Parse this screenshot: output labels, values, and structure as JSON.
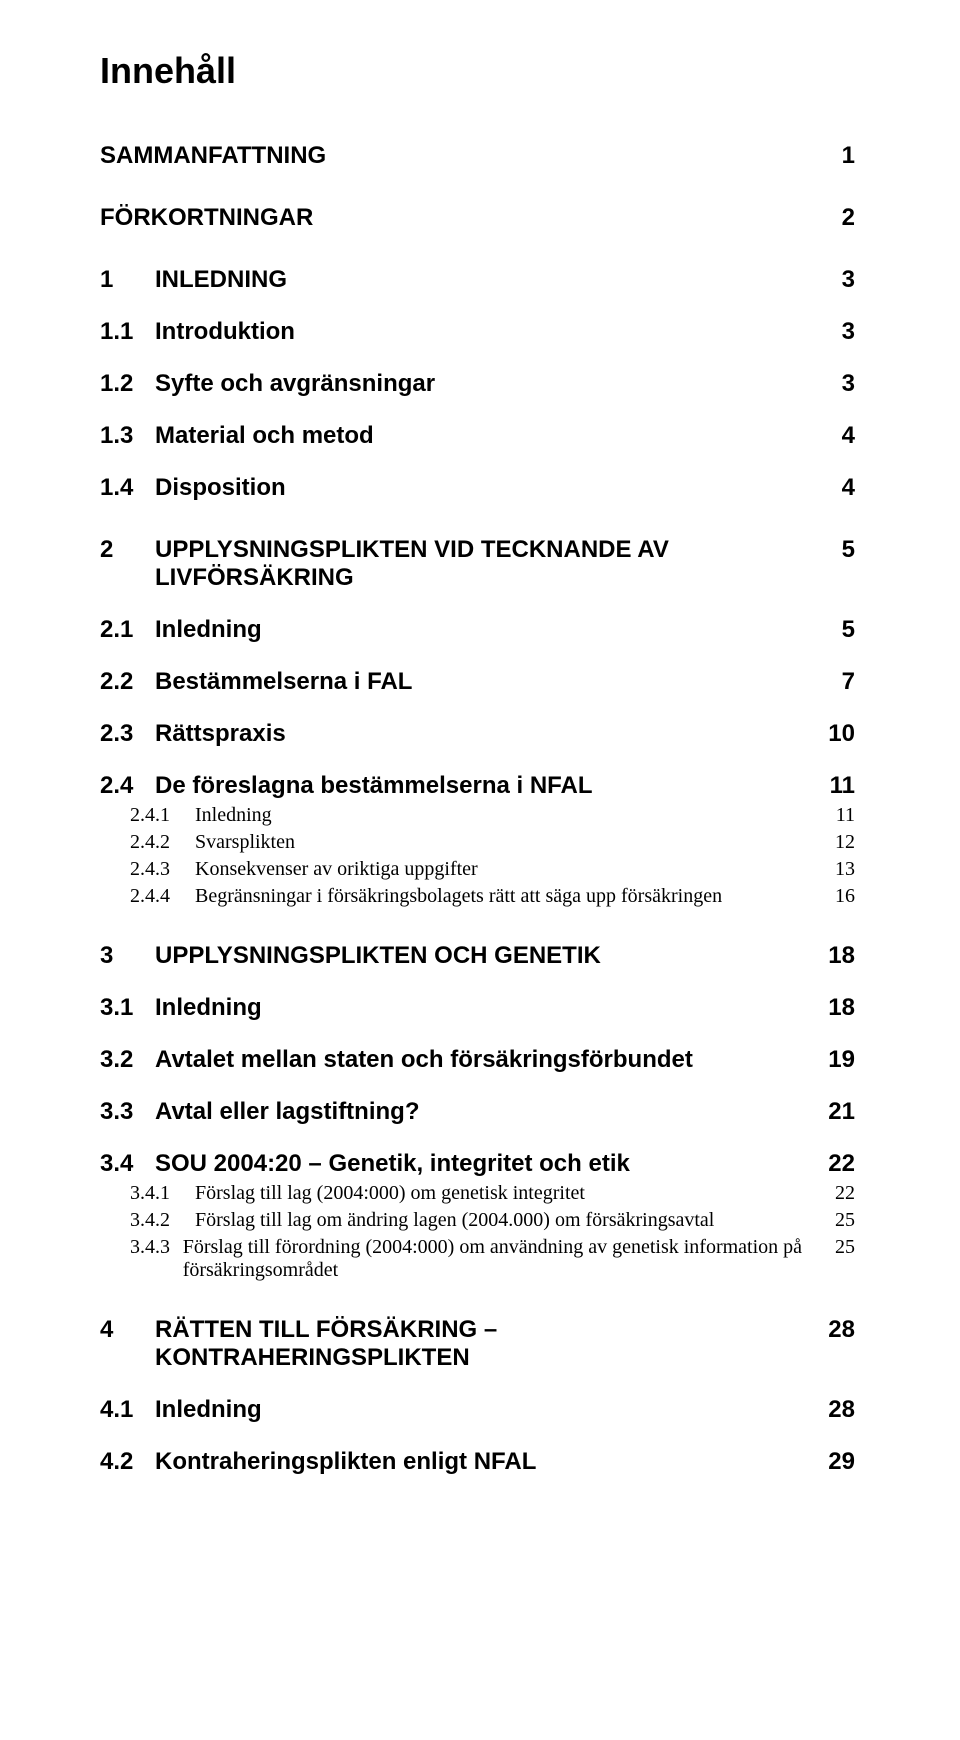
{
  "title": "Innehåll",
  "toc": [
    {
      "level": "h1",
      "num": "",
      "label": "SAMMANFATTNING",
      "page": "1",
      "first": true
    },
    {
      "level": "h1",
      "num": "",
      "label": "FÖRKORTNINGAR",
      "page": "2"
    },
    {
      "level": "h1",
      "num": "1",
      "label": "INLEDNING",
      "page": "3"
    },
    {
      "level": "h2",
      "num": "1.1",
      "label": "Introduktion",
      "page": "3"
    },
    {
      "level": "h2",
      "num": "1.2",
      "label": "Syfte och avgränsningar",
      "page": "3"
    },
    {
      "level": "h2",
      "num": "1.3",
      "label": "Material och metod",
      "page": "4"
    },
    {
      "level": "h2",
      "num": "1.4",
      "label": "Disposition",
      "page": "4"
    },
    {
      "level": "h1",
      "num": "2",
      "label": "UPPLYSNINGSPLIKTEN VID TECKNANDE AV LIVFÖRSÄKRING",
      "page": "5"
    },
    {
      "level": "h2",
      "num": "2.1",
      "label": "Inledning",
      "page": "5"
    },
    {
      "level": "h2",
      "num": "2.2",
      "label": "Bestämmelserna i FAL",
      "page": "7"
    },
    {
      "level": "h2",
      "num": "2.3",
      "label": "Rättspraxis",
      "page": "10"
    },
    {
      "level": "h2",
      "num": "2.4",
      "label": "De föreslagna bestämmelserna i NFAL",
      "page": "11"
    },
    {
      "level": "h3",
      "num": "2.4.1",
      "label": "Inledning",
      "page": "11",
      "indent": true
    },
    {
      "level": "h3",
      "num": "2.4.2",
      "label": "Svarsplikten",
      "page": "12",
      "indent": true
    },
    {
      "level": "h3",
      "num": "2.4.3",
      "label": "Konsekvenser av oriktiga uppgifter",
      "page": "13",
      "indent": true
    },
    {
      "level": "h3",
      "num": "2.4.4",
      "label": "Begränsningar i försäkringsbolagets rätt att säga upp försäkringen",
      "page": "16",
      "indent": true
    },
    {
      "level": "h1",
      "num": "3",
      "label": "UPPLYSNINGSPLIKTEN OCH GENETIK",
      "page": "18"
    },
    {
      "level": "h2",
      "num": "3.1",
      "label": "Inledning",
      "page": "18"
    },
    {
      "level": "h2",
      "num": "3.2",
      "label": "Avtalet mellan staten och försäkringsförbundet",
      "page": "19"
    },
    {
      "level": "h2",
      "num": "3.3",
      "label": "Avtal eller lagstiftning?",
      "page": "21"
    },
    {
      "level": "h2",
      "num": "3.4",
      "label": "SOU 2004:20 – Genetik, integritet och etik",
      "page": "22"
    },
    {
      "level": "h3",
      "num": "3.4.1",
      "label": "Förslag till lag (2004:000) om genetisk integritet",
      "page": "22",
      "indent": true
    },
    {
      "level": "h3",
      "num": "3.4.2",
      "label": "Förslag till lag om ändring lagen (2004.000) om försäkringsavtal",
      "page": "25",
      "indent": true
    },
    {
      "level": "h3",
      "num": "3.4.3",
      "label": "Förslag till förordning (2004:000) om användning av genetisk information på försäkringsområdet",
      "page": "25",
      "indent": true
    },
    {
      "level": "h1",
      "num": "4",
      "label": "RÄTTEN TILL FÖRSÄKRING – KONTRAHERINGSPLIKTEN",
      "page": "28"
    },
    {
      "level": "h2",
      "num": "4.1",
      "label": "Inledning",
      "page": "28"
    },
    {
      "level": "h2",
      "num": "4.2",
      "label": "Kontraheringsplikten enligt NFAL",
      "page": "29"
    }
  ]
}
